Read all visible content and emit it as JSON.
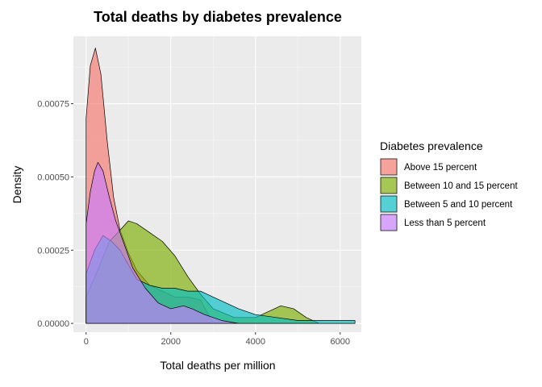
{
  "chart_data": {
    "type": "area",
    "title": "Total deaths by diabetes prevalence",
    "xlabel": "Total deaths per million",
    "ylabel": "Density",
    "xlim": [
      -300,
      6500
    ],
    "ylim": [
      -3e-05,
      0.00098
    ],
    "xticks": [
      0,
      2000,
      4000,
      6000
    ],
    "xtick_labels": [
      "0",
      "2000",
      "4000",
      "6000"
    ],
    "yticks": [
      0,
      0.00025,
      0.0005,
      0.00075
    ],
    "ytick_labels": [
      "0.00000",
      "0.00025",
      "0.00050",
      "0.00075"
    ],
    "grid": true,
    "legend": {
      "title": "Diabetes prevalence",
      "position": "right"
    },
    "series": [
      {
        "name": "Above 15 percent",
        "color": "#F8766D",
        "points": [
          [
            0,
            0.0007
          ],
          [
            100,
            0.00088
          ],
          [
            220,
            0.00094
          ],
          [
            350,
            0.00085
          ],
          [
            500,
            0.00062
          ],
          [
            650,
            0.00043
          ],
          [
            800,
            0.00032
          ],
          [
            1000,
            0.00024
          ],
          [
            1200,
            0.00018
          ],
          [
            1500,
            0.00013
          ],
          [
            1800,
            0.00011
          ],
          [
            2100,
            9e-05
          ],
          [
            2400,
            9e-05
          ],
          [
            2700,
            8e-05
          ],
          [
            3000,
            0.0
          ]
        ]
      },
      {
        "name": "Between 10 and 15 percent",
        "color": "#7CAE00",
        "points": [
          [
            0,
            9e-05
          ],
          [
            300,
            0.00019
          ],
          [
            550,
            0.00028
          ],
          [
            750,
            0.00031
          ],
          [
            1000,
            0.00035
          ],
          [
            1200,
            0.00034
          ],
          [
            1500,
            0.00031
          ],
          [
            1800,
            0.00028
          ],
          [
            2100,
            0.00023
          ],
          [
            2400,
            0.00016
          ],
          [
            2700,
            0.0001
          ],
          [
            3000,
            5e-05
          ],
          [
            3500,
            2e-05
          ],
          [
            4000,
            2e-05
          ],
          [
            4300,
            4e-05
          ],
          [
            4600,
            6e-05
          ],
          [
            4900,
            5e-05
          ],
          [
            5200,
            2e-05
          ],
          [
            5500,
            0.0
          ]
        ]
      },
      {
        "name": "Between 5 and 10 percent",
        "color": "#00BFC4",
        "points": [
          [
            0,
            0.00017
          ],
          [
            200,
            0.00025
          ],
          [
            400,
            0.0003
          ],
          [
            600,
            0.00028
          ],
          [
            800,
            0.00025
          ],
          [
            1000,
            0.0002
          ],
          [
            1200,
            0.00015
          ],
          [
            1500,
            0.00013
          ],
          [
            1800,
            0.00012
          ],
          [
            2100,
            0.00012
          ],
          [
            2400,
            0.00011
          ],
          [
            2700,
            0.00011
          ],
          [
            3000,
            9e-05
          ],
          [
            3300,
            7e-05
          ],
          [
            3600,
            5e-05
          ],
          [
            4000,
            3e-05
          ],
          [
            4500,
            2e-05
          ],
          [
            5000,
            1e-05
          ],
          [
            5500,
            1e-05
          ],
          [
            6000,
            1e-05
          ],
          [
            6350,
            1e-05
          ]
        ]
      },
      {
        "name": "Less than 5 percent",
        "color": "#C77CFF",
        "points": [
          [
            0,
            0.00034
          ],
          [
            100,
            0.00045
          ],
          [
            200,
            0.00052
          ],
          [
            280,
            0.00055
          ],
          [
            400,
            0.00052
          ],
          [
            550,
            0.00043
          ],
          [
            700,
            0.00035
          ],
          [
            900,
            0.00027
          ],
          [
            1100,
            0.00019
          ],
          [
            1400,
            0.00012
          ],
          [
            1700,
            7e-05
          ],
          [
            2000,
            5e-05
          ],
          [
            2300,
            6e-05
          ],
          [
            2500,
            5e-05
          ],
          [
            2800,
            3e-05
          ],
          [
            3200,
            1e-05
          ],
          [
            3600,
            0.0
          ]
        ]
      }
    ]
  }
}
